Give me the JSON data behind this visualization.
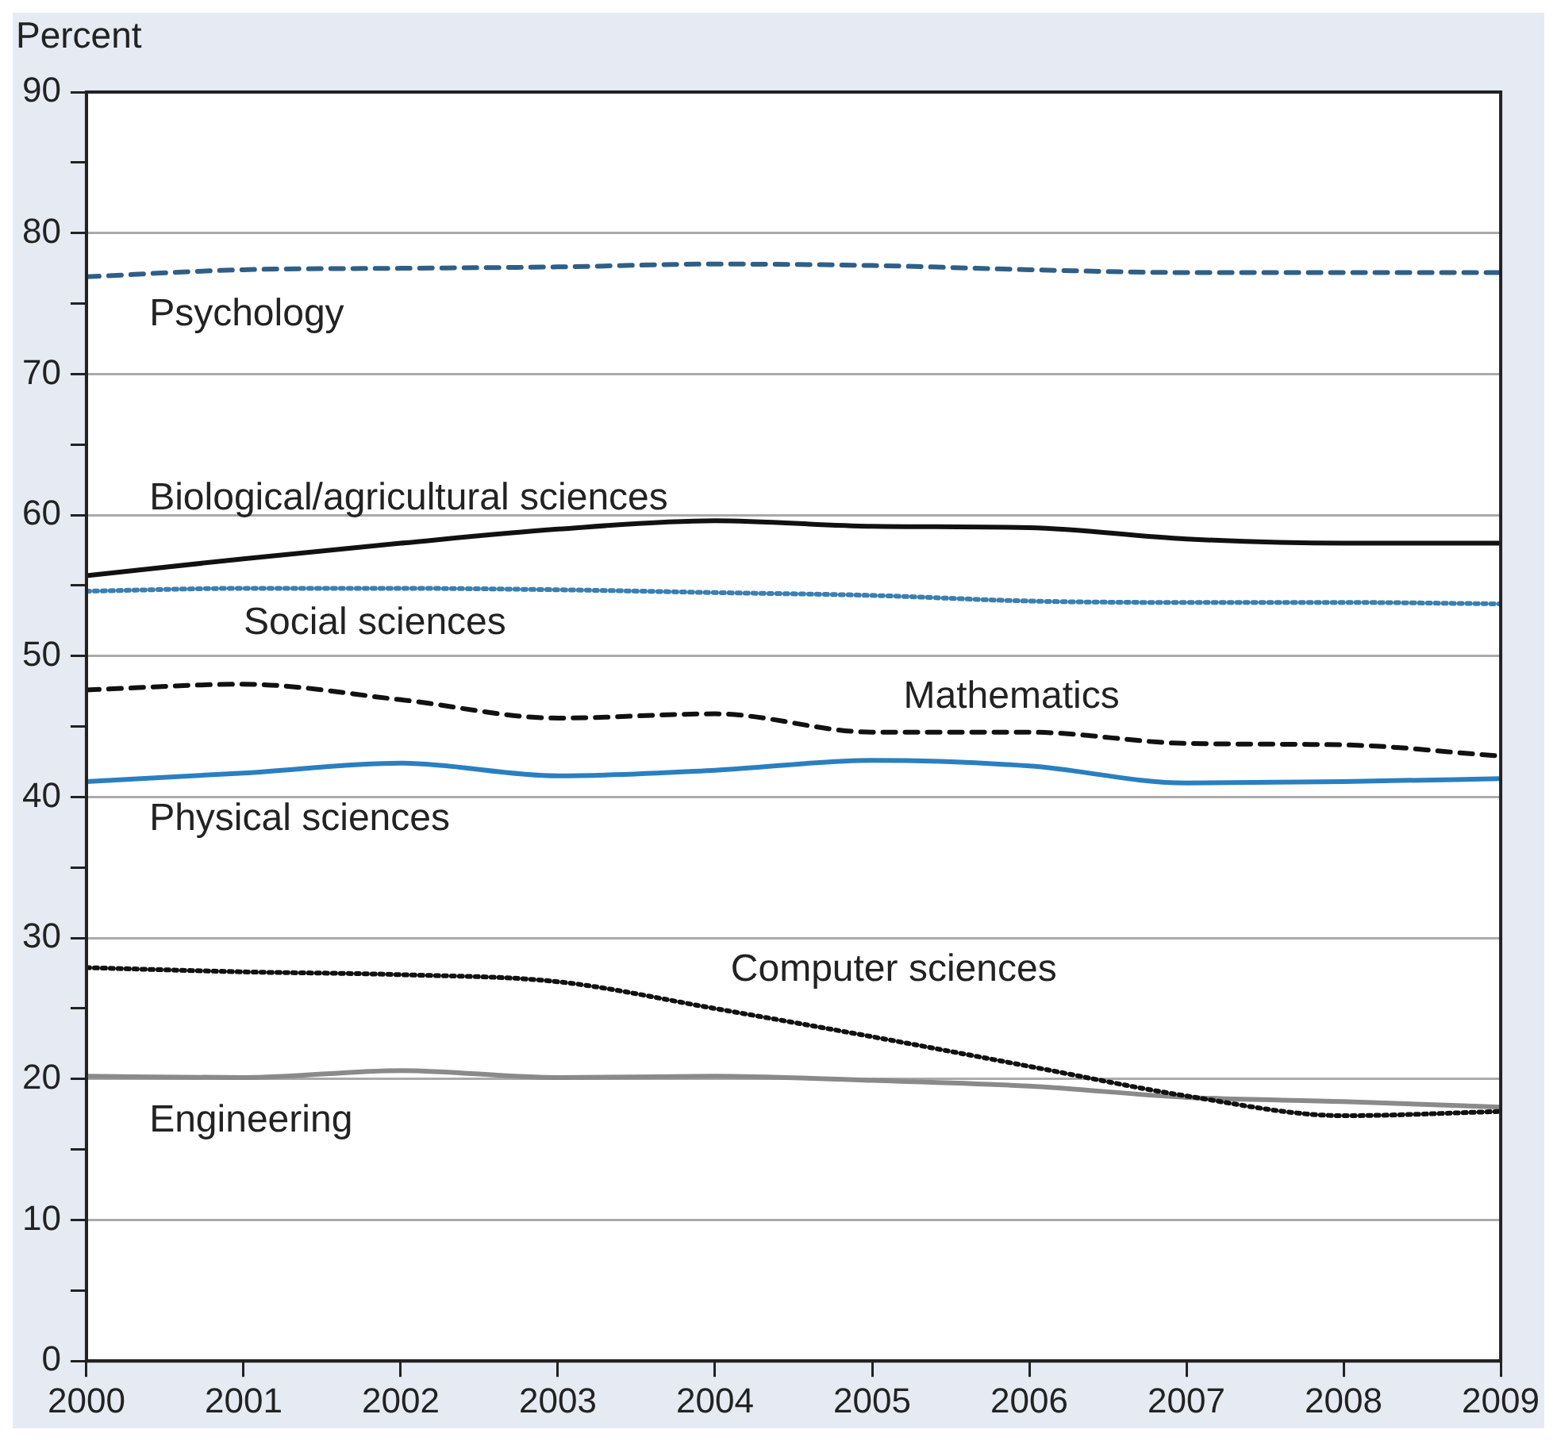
{
  "chart_data": {
    "type": "line",
    "ylabel": "Percent",
    "x": [
      2000,
      2001,
      2002,
      2003,
      2004,
      2005,
      2006,
      2007,
      2008,
      2009
    ],
    "xlim": [
      2000,
      2009
    ],
    "xticks": [
      2000,
      2001,
      2002,
      2003,
      2004,
      2005,
      2006,
      2007,
      2008,
      2009
    ],
    "ylim": [
      0,
      90
    ],
    "yticks": [
      0,
      {
        "value": 5,
        "label": null
      },
      10,
      {
        "value": 15,
        "label": null
      },
      20,
      {
        "value": 25,
        "label": null
      },
      30,
      {
        "value": 35,
        "label": null
      },
      40,
      {
        "value": 45,
        "label": null
      },
      50,
      {
        "value": 55,
        "label": null
      },
      60,
      {
        "value": 65,
        "label": null
      },
      70,
      {
        "value": 75,
        "label": null
      },
      80,
      {
        "value": 85,
        "label": null
      },
      90
    ],
    "grid": "y",
    "legend": false,
    "marker": "none",
    "series": [
      {
        "name": "Psychology",
        "color": "#2f5f86",
        "line_style": "dashed",
        "values": [
          76.9,
          77.4,
          77.5,
          77.6,
          77.8,
          77.7,
          77.4,
          77.2,
          77.2,
          77.2
        ]
      },
      {
        "name": "Biological/agricultural sciences",
        "color": "#111111",
        "line_style": "solid",
        "values": [
          55.7,
          56.9,
          58,
          59,
          59.6,
          59.2,
          59.1,
          58.3,
          58,
          58
        ]
      },
      {
        "name": "Social sciences",
        "color": "#3a7fb0",
        "line_style": "dotted",
        "values": [
          54.6,
          54.8,
          54.8,
          54.7,
          54.5,
          54.3,
          53.9,
          53.8,
          53.8,
          53.7
        ]
      },
      {
        "name": "Mathematics",
        "color": "#111111",
        "line_style": "dashed",
        "values": [
          47.6,
          48,
          46.9,
          45.6,
          45.9,
          44.6,
          44.6,
          43.8,
          43.7,
          42.9
        ]
      },
      {
        "name": "Physical sciences",
        "color": "#2a7fc0",
        "line_style": "solid",
        "values": [
          41.1,
          41.7,
          42.4,
          41.5,
          41.9,
          42.6,
          42.2,
          41,
          41.1,
          41.3
        ]
      },
      {
        "name": "Computer sciences",
        "color": "#111111",
        "line_style": "dotted",
        "values": [
          27.9,
          27.6,
          27.4,
          26.9,
          25,
          23,
          20.9,
          18.8,
          17.4,
          17.7
        ]
      },
      {
        "name": "Engineering",
        "color": "#8a8a8a",
        "line_style": "solid",
        "values": [
          20.2,
          20.1,
          20.6,
          20.1,
          20.2,
          19.9,
          19.5,
          18.7,
          18.4,
          18
        ]
      }
    ]
  }
}
